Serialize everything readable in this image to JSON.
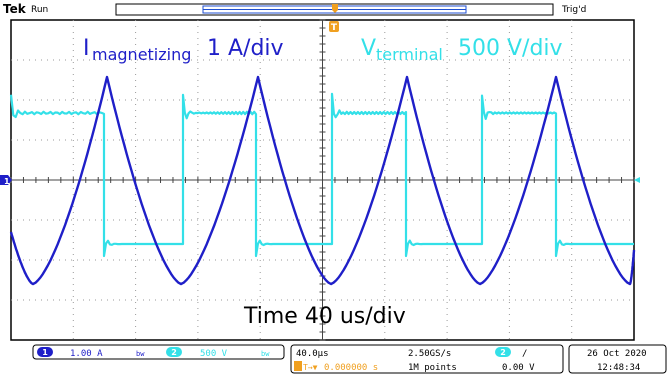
{
  "header": {
    "brand": "Tek",
    "run_state": "Run",
    "trigger_state": "Trig'd",
    "trigger_marker": "T"
  },
  "annotations": {
    "magnetizing_main": "I",
    "magnetizing_sub": "magnetizing",
    "magnetizing_scale": "1 A/div",
    "terminal_main": "V",
    "terminal_sub": "terminal",
    "terminal_scale": "500 V/div",
    "time_label": "Time 40 us/div"
  },
  "channels": {
    "ch1": {
      "number": "1",
      "scale": "1.00 A",
      "coupling": "bw"
    },
    "ch2": {
      "number": "2",
      "scale": "500 V",
      "coupling": "bw"
    }
  },
  "horizontal": {
    "timebase": "40.0µs",
    "trigger_position": "0.000000 s",
    "trigger_position_prefix": "T→▼",
    "sample_rate": "2.50GS/s",
    "record_length": "1M points"
  },
  "trigger": {
    "source": "2",
    "slope": "/",
    "level": "0.00 V"
  },
  "datetime": {
    "date": "26 Oct  2020",
    "time": "12:48:34"
  },
  "colors": {
    "background": "#ffffff",
    "ch1": "#1f1fc8",
    "ch2": "#33e0e8",
    "trigger": "#f0a020",
    "grid": "#a0a0a0",
    "frame": "#000000"
  }
}
